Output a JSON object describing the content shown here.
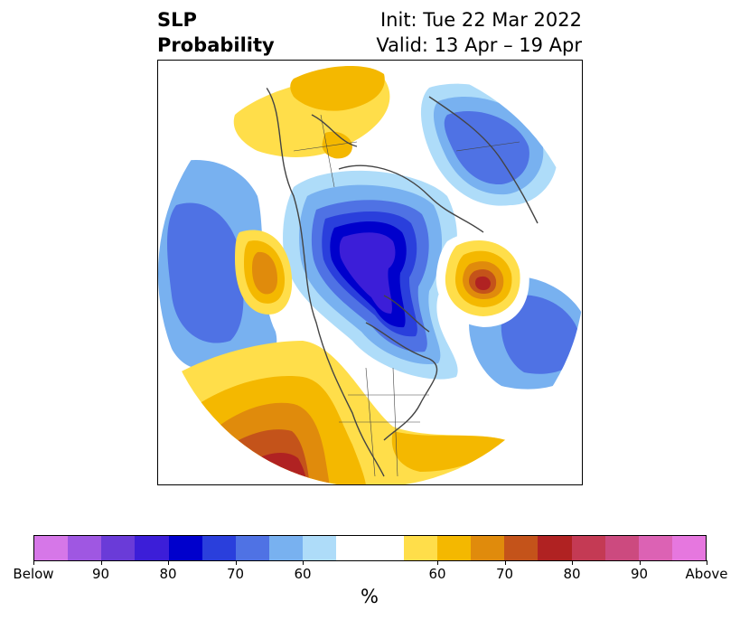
{
  "title": {
    "left_line1": "SLP",
    "left_line2": "Probability",
    "right_line1": "Init: Tue 22 Mar 2022",
    "right_line2": "Valid: 13 Apr – 19 Apr"
  },
  "colorbar": {
    "colors": [
      "#d677e8",
      "#9f57e2",
      "#6a3bd8",
      "#3c1ed8",
      "#0000cc",
      "#2a3fdc",
      "#4f72e4",
      "#78b1f0",
      "#aedcf9",
      "#ffffff",
      "#ffffff",
      "#ffde4a",
      "#f4b800",
      "#e08b0c",
      "#c4531a",
      "#b02222",
      "#c43a54",
      "#cc4a7f",
      "#dc62b4",
      "#e677df"
    ],
    "ticks": [
      "Below",
      "90",
      "80",
      "70",
      "60",
      "60",
      "70",
      "80",
      "90",
      "Above"
    ],
    "unit": "%"
  },
  "map": {
    "legend_meaning": "below-normal in blues/purples, above-normal in yellows/reds"
  }
}
